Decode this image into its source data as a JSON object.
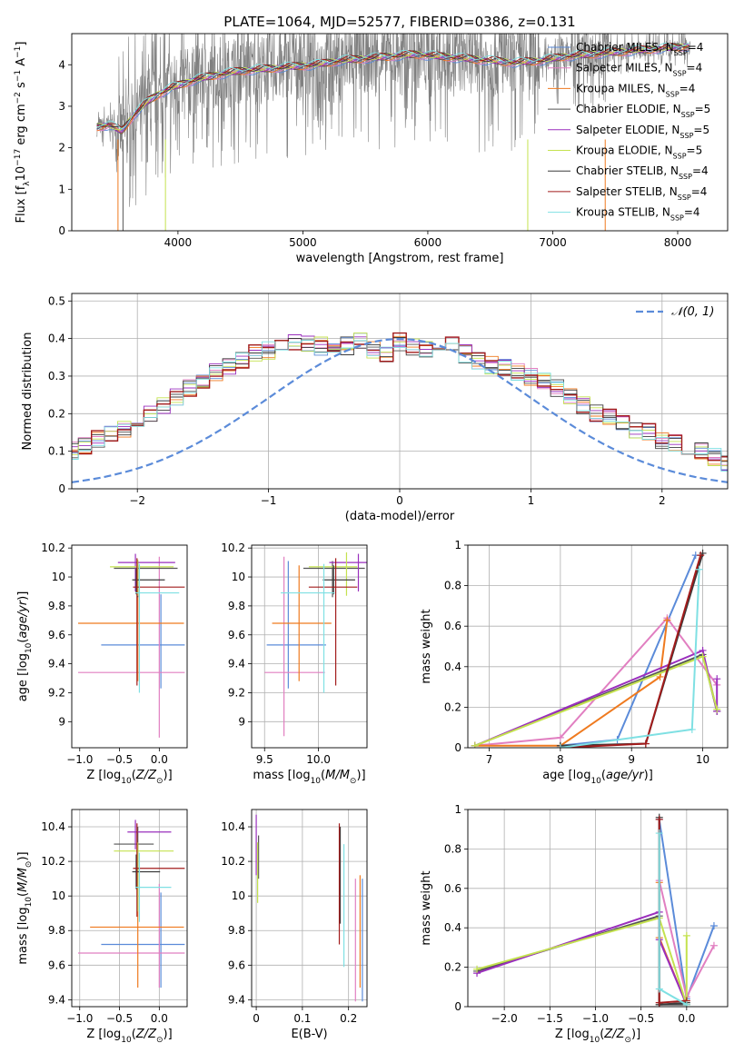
{
  "figure_title": "PLATE=1064, MJD=52577, FIBERID=0386, z=0.131",
  "colors": {
    "Chabrier MILES": "#5b8bd9",
    "Salpeter MILES": "#e17fc1",
    "Kroupa MILES": "#ef7a1f",
    "Chabrier ELODIE": "#555555",
    "Salpeter ELODIE": "#9a2fbd",
    "Kroupa ELODIE": "#c4e24f",
    "Chabrier STELIB": "#3b3b3b",
    "Salpeter STELIB": "#a21b1b",
    "Kroupa STELIB": "#7fe0e3",
    "data": "#808080",
    "normal": "#5b8bd9"
  },
  "chart_data": [
    {
      "id": "spectrum",
      "type": "line",
      "title": "PLATE=1064, MJD=52577, FIBERID=0386, z=0.131",
      "xlabel": "wavelength [Angstrom, rest frame]",
      "ylabel": "Flux [f_λ 10^-17 erg cm^-2 s^-1 A^-1]",
      "xlim": [
        3150,
        8400
      ],
      "ylim": [
        0,
        4.75
      ],
      "xticks": [
        4000,
        5000,
        6000,
        7000,
        8000
      ],
      "yticks": [
        0,
        1,
        2,
        3,
        4
      ],
      "grid": false,
      "legend_position": "upper-right",
      "legend": [
        {
          "label": "Chabrier MILES, N",
          "sub": "SSP",
          "suffix": "=4"
        },
        {
          "label": "Salpeter MILES, N",
          "sub": "SSP",
          "suffix": "=4"
        },
        {
          "label": "Kroupa MILES, N",
          "sub": "SSP",
          "suffix": "=4"
        },
        {
          "label": "Chabrier ELODIE, N",
          "sub": "SSP",
          "suffix": "=5"
        },
        {
          "label": "Salpeter ELODIE, N",
          "sub": "SSP",
          "suffix": "=5"
        },
        {
          "label": "Kroupa ELODIE, N",
          "sub": "SSP",
          "suffix": "=5"
        },
        {
          "label": "Chabrier STELIB, N",
          "sub": "SSP",
          "suffix": "=4"
        },
        {
          "label": "Salpeter STELIB, N",
          "sub": "SSP",
          "suffix": "=4"
        },
        {
          "label": "Kroupa STELIB, N",
          "sub": "SSP",
          "suffix": "=4"
        }
      ],
      "continuum": {
        "x": [
          3350,
          3450,
          3550,
          3650,
          3750,
          3850,
          3950,
          4050,
          4150,
          4300,
          4500,
          4700,
          4900,
          5100,
          5300,
          5500,
          5700,
          5900,
          6100,
          6300,
          6500,
          6700,
          6900,
          7100,
          7300,
          7500,
          7700,
          7900,
          8100
        ],
        "y": [
          2.5,
          2.55,
          2.4,
          2.8,
          3.1,
          3.3,
          3.45,
          3.55,
          3.65,
          3.75,
          3.85,
          3.9,
          3.95,
          4.0,
          4.1,
          4.15,
          4.2,
          4.25,
          4.2,
          4.15,
          4.1,
          4.05,
          4.1,
          4.2,
          4.25,
          4.3,
          4.35,
          4.4,
          4.45
        ]
      },
      "data_range": [
        3350,
        8100
      ]
    },
    {
      "id": "residual_hist",
      "type": "histogram",
      "xlabel": "(data-model)/error",
      "ylabel": "Normed distribution",
      "xlim": [
        -2.5,
        2.5
      ],
      "ylim": [
        0,
        0.52
      ],
      "xticks": [
        -2,
        -1,
        0,
        1,
        2
      ],
      "yticks": [
        0.0,
        0.1,
        0.2,
        0.3,
        0.4,
        0.5
      ],
      "grid": true,
      "legend_position": "upper-right",
      "legend_label": "N(0,1)",
      "bin_width": 0.1,
      "series_mean": [
        0.02,
        0.025,
        0.03,
        0.035,
        0.04,
        0.05,
        0.06,
        0.07,
        0.085,
        0.1,
        0.115,
        0.13,
        0.145,
        0.16,
        0.18,
        0.2,
        0.22,
        0.245,
        0.27,
        0.29,
        0.31,
        0.33,
        0.345,
        0.36,
        0.37,
        0.385,
        0.39,
        0.39,
        0.38,
        0.37,
        0.38,
        0.39,
        0.37,
        0.36,
        0.39,
        0.38,
        0.37,
        0.38,
        0.39,
        0.36,
        0.34,
        0.33,
        0.32,
        0.31,
        0.3,
        0.29,
        0.27,
        0.25,
        0.22,
        0.2,
        0.19,
        0.17,
        0.16,
        0.15,
        0.13,
        0.12,
        0.11,
        0.1,
        0.085,
        0.07,
        0.06,
        0.06,
        0.05,
        0.04,
        0.035,
        0.03,
        0.03,
        0.025,
        0.02,
        0.02
      ]
    },
    {
      "id": "age_vs_Z",
      "type": "scatter",
      "xlabel": "Z [log10(Z/Z⊙)]",
      "ylabel": "age [log10(age/yr)]",
      "xlim": [
        -1.1,
        0.35
      ],
      "ylim": [
        8.82,
        10.22
      ],
      "xticks": [
        -1.0,
        -0.5,
        0.0
      ],
      "xtick_labels": [
        "−1.0",
        "−0.5",
        "0.0"
      ],
      "yticks": [
        9.0,
        9.2,
        9.4,
        9.6,
        9.8,
        10.0,
        10.2
      ],
      "grid": false,
      "points": [
        {
          "model": "Chabrier MILES",
          "x": 0.02,
          "xerr": [
            0.75,
            0.3
          ],
          "y": 9.53,
          "yerr": [
            0.3,
            0.35
          ]
        },
        {
          "model": "Salpeter MILES",
          "x": 0.0,
          "xerr": [
            1.02,
            0.32
          ],
          "y": 9.34,
          "yerr": [
            0.45,
            0.8
          ]
        },
        {
          "model": "Kroupa MILES",
          "x": -0.27,
          "xerr": [
            0.75,
            0.58
          ],
          "y": 9.68,
          "yerr": [
            0.4,
            0.4
          ]
        },
        {
          "model": "Chabrier ELODIE",
          "x": -0.27,
          "xerr": [
            0.3,
            0.5
          ],
          "y": 10.06,
          "yerr": [
            0.2,
            0.05
          ]
        },
        {
          "model": "Salpeter ELODIE",
          "x": -0.3,
          "xerr": [
            0.22,
            0.5
          ],
          "y": 10.1,
          "yerr": [
            0.2,
            0.06
          ]
        },
        {
          "model": "Kroupa ELODIE",
          "x": -0.27,
          "xerr": [
            0.35,
            0.45
          ],
          "y": 10.07,
          "yerr": [
            0.2,
            0.05
          ]
        },
        {
          "model": "Chabrier STELIB",
          "x": -0.29,
          "xerr": [
            0.05,
            0.36
          ],
          "y": 9.98,
          "yerr": [
            0.1,
            0.08
          ]
        },
        {
          "model": "Salpeter STELIB",
          "x": -0.28,
          "xerr": [
            0.05,
            0.6
          ],
          "y": 9.93,
          "yerr": [
            0.68,
            0.2
          ]
        },
        {
          "model": "Kroupa STELIB",
          "x": -0.25,
          "xerr": [
            0.05,
            0.5
          ],
          "y": 9.89,
          "yerr": [
            0.69,
            0.2
          ]
        }
      ]
    },
    {
      "id": "age_vs_mass",
      "type": "scatter",
      "xlabel": "mass [log10(M/M⊙)]",
      "ylabel": "",
      "xlim": [
        9.38,
        10.45
      ],
      "ylim": [
        8.82,
        10.22
      ],
      "xticks": [
        9.5,
        10.0
      ],
      "xtick_labels": [
        "9.5",
        "10.0"
      ],
      "yticks": [
        9.0,
        9.2,
        9.4,
        9.6,
        9.8,
        10.0,
        10.2
      ],
      "grid": true,
      "points": [
        {
          "model": "Chabrier MILES",
          "x": 9.72,
          "xerr": [
            0.2,
            0.35
          ],
          "y": 9.53,
          "yerr": [
            0.3,
            0.58
          ]
        },
        {
          "model": "Salpeter MILES",
          "x": 9.68,
          "xerr": [
            0.18,
            0.38
          ],
          "y": 9.34,
          "yerr": [
            0.44,
            0.8
          ]
        },
        {
          "model": "Kroupa MILES",
          "x": 9.82,
          "xerr": [
            0.25,
            0.3
          ],
          "y": 9.68,
          "yerr": [
            0.4,
            0.4
          ]
        },
        {
          "model": "Chabrier ELODIE",
          "x": 10.13,
          "xerr": [
            0.27,
            0.3
          ],
          "y": 10.06,
          "yerr": [
            0.2,
            0.05
          ]
        },
        {
          "model": "Salpeter ELODIE",
          "x": 10.37,
          "xerr": [
            0.27,
            0.1
          ],
          "y": 10.1,
          "yerr": [
            0.2,
            0.06
          ]
        },
        {
          "model": "Kroupa ELODIE",
          "x": 10.26,
          "xerr": [
            0.35,
            0.1
          ],
          "y": 10.07,
          "yerr": [
            0.2,
            0.1
          ]
        },
        {
          "model": "Chabrier STELIB",
          "x": 10.14,
          "xerr": [
            0.1,
            0.2
          ],
          "y": 9.98,
          "yerr": [
            0.1,
            0.1
          ]
        },
        {
          "model": "Salpeter STELIB",
          "x": 10.16,
          "xerr": [
            0.25,
            0.2
          ],
          "y": 9.93,
          "yerr": [
            0.68,
            0.2
          ]
        },
        {
          "model": "Kroupa STELIB",
          "x": 10.05,
          "xerr": [
            0.4,
            0.1
          ],
          "y": 9.89,
          "yerr": [
            0.69,
            0.2
          ]
        }
      ]
    },
    {
      "id": "massweight_vs_age",
      "type": "line",
      "xlabel": "age [log10(age/yr)]",
      "ylabel": "mass weight",
      "xlim": [
        6.7,
        10.35
      ],
      "ylim": [
        0,
        1.0
      ],
      "xticks": [
        7,
        8,
        9,
        10
      ],
      "yticks": [
        0.0,
        0.2,
        0.4,
        0.6,
        0.8,
        1.0
      ],
      "grid": true,
      "series": [
        {
          "model": "Chabrier MILES",
          "x": [
            8.0,
            8.8,
            9.9
          ],
          "y": [
            0.01,
            0.04,
            0.95
          ]
        },
        {
          "model": "Salpeter MILES",
          "x": [
            6.8,
            8.0,
            9.5,
            10.2
          ],
          "y": [
            0.01,
            0.05,
            0.64,
            0.31
          ]
        },
        {
          "model": "Kroupa MILES",
          "x": [
            6.8,
            8.0,
            9.4,
            9.5
          ],
          "y": [
            0.01,
            0.01,
            0.35,
            0.63
          ]
        },
        {
          "model": "Chabrier ELODIE",
          "x": [
            6.8,
            10.0,
            10.2
          ],
          "y": [
            0.01,
            0.46,
            0.18
          ]
        },
        {
          "model": "Salpeter ELODIE",
          "x": [
            6.8,
            10.0,
            10.2,
            10.2
          ],
          "y": [
            0.01,
            0.48,
            0.18,
            0.34
          ]
        },
        {
          "model": "Kroupa ELODIE",
          "x": [
            6.8,
            10.0,
            10.2
          ],
          "y": [
            0.01,
            0.45,
            0.19
          ]
        },
        {
          "model": "Chabrier STELIB",
          "x": [
            8.0,
            9.2,
            10.0
          ],
          "y": [
            0.01,
            0.02,
            0.96
          ]
        },
        {
          "model": "Salpeter STELIB",
          "x": [
            8.0,
            9.2,
            9.97
          ],
          "y": [
            0.0,
            0.02,
            0.95
          ]
        },
        {
          "model": "Kroupa STELIB",
          "x": [
            8.0,
            9.85,
            9.95
          ],
          "y": [
            0.0,
            0.09,
            0.88
          ]
        }
      ]
    },
    {
      "id": "mass_vs_Z",
      "type": "scatter",
      "xlabel": "Z [log10(Z/Z⊙)]",
      "ylabel": "mass [log10(M/M⊙)]",
      "xlim": [
        -1.1,
        0.35
      ],
      "ylim": [
        9.36,
        10.5
      ],
      "xticks": [
        -1.0,
        -0.5,
        0.0
      ],
      "xtick_labels": [
        "−1.0",
        "−0.5",
        "0.0"
      ],
      "yticks": [
        9.4,
        9.6,
        9.8,
        10.0,
        10.2,
        10.4
      ],
      "grid": true,
      "points": [
        {
          "model": "Chabrier MILES",
          "x": 0.02,
          "xerr": [
            0.75,
            0.3
          ],
          "y": 9.72,
          "yerr": [
            0.25,
            0.3
          ]
        },
        {
          "model": "Salpeter MILES",
          "x": 0.0,
          "xerr": [
            1.02,
            0.32
          ],
          "y": 9.67,
          "yerr": [
            0.2,
            0.4
          ]
        },
        {
          "model": "Kroupa MILES",
          "x": -0.27,
          "xerr": [
            0.6,
            0.58
          ],
          "y": 9.82,
          "yerr": [
            0.35,
            0.33
          ]
        },
        {
          "model": "Chabrier ELODIE",
          "x": -0.27,
          "xerr": [
            0.3,
            0.2
          ],
          "y": 10.3,
          "yerr": [
            0.15,
            0.1
          ]
        },
        {
          "model": "Salpeter ELODIE",
          "x": -0.3,
          "xerr": [
            0.1,
            0.45
          ],
          "y": 10.37,
          "yerr": [
            0.1,
            0.07
          ]
        },
        {
          "model": "Kroupa ELODIE",
          "x": -0.27,
          "xerr": [
            0.3,
            0.45
          ],
          "y": 10.26,
          "yerr": [
            0.35,
            0.05
          ]
        },
        {
          "model": "Chabrier STELIB",
          "x": -0.29,
          "xerr": [
            0.05,
            0.3
          ],
          "y": 10.14,
          "yerr": [
            0.1,
            0.1
          ]
        },
        {
          "model": "Salpeter STELIB",
          "x": -0.28,
          "xerr": [
            0.05,
            0.6
          ],
          "y": 10.16,
          "yerr": [
            0.28,
            0.26
          ]
        },
        {
          "model": "Kroupa STELIB",
          "x": -0.25,
          "xerr": [
            0.05,
            0.4
          ],
          "y": 10.05,
          "yerr": [
            0.2,
            0.2
          ]
        }
      ]
    },
    {
      "id": "mass_vs_ebv",
      "type": "scatter",
      "xlabel": "E(B-V)",
      "ylabel": "",
      "xlim": [
        -0.01,
        0.24
      ],
      "ylim": [
        9.36,
        10.5
      ],
      "xticks": [
        0.0,
        0.1,
        0.2
      ],
      "yticks": [
        9.4,
        9.6,
        9.8,
        10.0,
        10.2,
        10.4
      ],
      "grid": true,
      "points": [
        {
          "model": "Chabrier MILES",
          "x": 0.23,
          "y": 9.72,
          "yerr": [
            0.33,
            0.38
          ]
        },
        {
          "model": "Salpeter MILES",
          "x": 0.215,
          "y": 9.67,
          "yerr": [
            0.28,
            0.43
          ]
        },
        {
          "model": "Kroupa MILES",
          "x": 0.225,
          "y": 9.82,
          "yerr": [
            0.35,
            0.3
          ]
        },
        {
          "model": "Chabrier ELODIE",
          "x": 0.005,
          "y": 10.3,
          "yerr": [
            0.2,
            0.05
          ]
        },
        {
          "model": "Salpeter ELODIE",
          "x": 0.0,
          "y": 10.37,
          "yerr": [
            0.25,
            0.1
          ]
        },
        {
          "model": "Kroupa ELODIE",
          "x": 0.003,
          "y": 10.26,
          "yerr": [
            0.3,
            0.05
          ]
        },
        {
          "model": "Chabrier STELIB",
          "x": 0.182,
          "y": 10.14,
          "yerr": [
            0.3,
            0.26
          ]
        },
        {
          "model": "Salpeter STELIB",
          "x": 0.18,
          "y": 10.16,
          "yerr": [
            0.44,
            0.26
          ]
        },
        {
          "model": "Kroupa STELIB",
          "x": 0.19,
          "y": 10.05,
          "yerr": [
            0.46,
            0.25
          ]
        }
      ]
    },
    {
      "id": "massweight_vs_Z",
      "type": "line",
      "xlabel": "Z [log10(Z/Z⊙)]",
      "ylabel": "mass weight",
      "xlim": [
        -2.4,
        0.45
      ],
      "ylim": [
        0,
        1.0
      ],
      "xticks": [
        -2.0,
        -1.5,
        -1.0,
        -0.5,
        0.0
      ],
      "xtick_labels": [
        "−2.0",
        "−1.5",
        "−1.0",
        "−0.5",
        "0.0"
      ],
      "yticks": [
        0.0,
        0.2,
        0.4,
        0.6,
        0.8,
        1.0
      ],
      "grid": true,
      "series": [
        {
          "model": "Chabrier MILES",
          "x": [
            -0.3,
            0.0,
            0.3
          ],
          "y": [
            0.95,
            0.04,
            0.41
          ]
        },
        {
          "model": "Salpeter MILES",
          "x": [
            -0.3,
            0.0,
            0.3
          ],
          "y": [
            0.64,
            0.05,
            0.31
          ]
        },
        {
          "model": "Kroupa MILES",
          "x": [
            -0.3,
            -0.3,
            0.0
          ],
          "y": [
            0.63,
            0.35,
            0.01
          ]
        },
        {
          "model": "Chabrier ELODIE",
          "x": [
            -2.3,
            -0.3,
            -0.3,
            0.0
          ],
          "y": [
            0.18,
            0.46,
            0.01,
            0.01
          ]
        },
        {
          "model": "Salpeter ELODIE",
          "x": [
            -2.3,
            -0.3,
            -0.3,
            0.0
          ],
          "y": [
            0.17,
            0.48,
            0.34,
            0.01
          ]
        },
        {
          "model": "Kroupa ELODIE",
          "x": [
            -2.3,
            -0.3,
            0.0,
            0.0
          ],
          "y": [
            0.19,
            0.45,
            0.01,
            0.36
          ]
        },
        {
          "model": "Chabrier STELIB",
          "x": [
            -0.3,
            -0.3,
            0.0
          ],
          "y": [
            0.96,
            0.01,
            0.02
          ]
        },
        {
          "model": "Salpeter STELIB",
          "x": [
            -0.3,
            -0.3,
            0.0
          ],
          "y": [
            0.95,
            0.02,
            0.03
          ]
        },
        {
          "model": "Kroupa STELIB",
          "x": [
            -0.3,
            -0.3,
            0.0
          ],
          "y": [
            0.88,
            0.09,
            0.01
          ]
        }
      ]
    }
  ]
}
